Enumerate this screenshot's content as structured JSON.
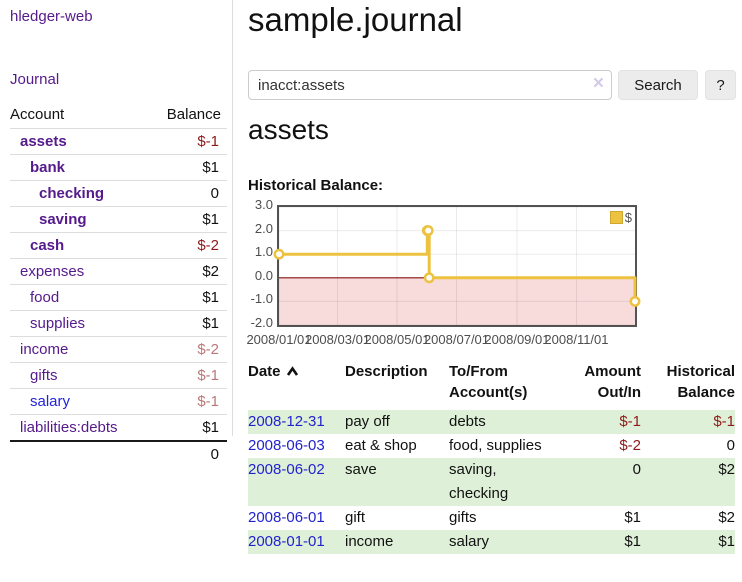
{
  "app": {
    "brand": "hledger-web",
    "nav_journal": "Journal"
  },
  "sidebar": {
    "col_account": "Account",
    "col_balance": "Balance",
    "accounts": [
      {
        "name": "assets",
        "depth": 1,
        "bold": true,
        "negative": true,
        "link": "purple",
        "balance": "$-1"
      },
      {
        "name": "bank",
        "depth": 2,
        "bold": true,
        "negative": false,
        "link": "purple",
        "balance": "$1"
      },
      {
        "name": "checking",
        "depth": 3,
        "bold": true,
        "negative": false,
        "link": "purple",
        "balance": "0"
      },
      {
        "name": "saving",
        "depth": 3,
        "bold": true,
        "negative": false,
        "link": "purple",
        "balance": "$1"
      },
      {
        "name": "cash",
        "depth": 2,
        "bold": true,
        "negative": true,
        "link": "purple",
        "balance": "$-2"
      },
      {
        "name": "expenses",
        "depth": 1,
        "bold": false,
        "negative": false,
        "link": "purple",
        "balance": "$2"
      },
      {
        "name": "food",
        "depth": 2,
        "bold": false,
        "negative": false,
        "link": "purple",
        "balance": "$1"
      },
      {
        "name": "supplies",
        "depth": 2,
        "bold": false,
        "negative": false,
        "link": "purple",
        "balance": "$1"
      },
      {
        "name": "income",
        "depth": 1,
        "bold": false,
        "negative": true,
        "link": "purple",
        "balance": "$-2"
      },
      {
        "name": "gifts",
        "depth": 2,
        "bold": false,
        "negative": true,
        "link": "purple",
        "balance": "$-1"
      },
      {
        "name": "salary",
        "depth": 2,
        "bold": false,
        "negative": true,
        "link": "blue",
        "balance": "$-1"
      },
      {
        "name": "liabilities:debts",
        "depth": 1,
        "bold": false,
        "negative": false,
        "link": "purple",
        "balance": "$1"
      }
    ],
    "total": "0"
  },
  "header": {
    "title": "sample.journal"
  },
  "search": {
    "value": "inacct:assets",
    "clear_icon": "×",
    "button": "Search",
    "help_button": "?"
  },
  "account_page": {
    "heading": "assets",
    "chart_title": "Historical Balance:"
  },
  "chart_data": {
    "type": "line",
    "step": true,
    "title": "Historical Balance:",
    "xlim": [
      "2008-01-01",
      "2008-12-31"
    ],
    "ylim": [
      -2,
      3
    ],
    "ytick_values": [
      3,
      2,
      1,
      0,
      -1,
      -2
    ],
    "ytick_labels": [
      "3.0",
      "2.0",
      "1.0",
      "0.0",
      "-1.0",
      "-2.0"
    ],
    "xticks": [
      {
        "date": "2008-01-01",
        "label": "2008/01/01"
      },
      {
        "date": "2008-03-01",
        "label": "2008/03/01"
      },
      {
        "date": "2008-05-01",
        "label": "2008/05/01"
      },
      {
        "date": "2008-07-01",
        "label": "2008/07/01"
      },
      {
        "date": "2008-09-01",
        "label": "2008/09/01"
      },
      {
        "date": "2008-11-01",
        "label": "2008/11/01"
      }
    ],
    "series": [
      {
        "name": "$",
        "color": "#edc240",
        "points": [
          [
            "2008-01-01",
            1
          ],
          [
            "2008-06-01",
            2
          ],
          [
            "2008-06-02",
            2
          ],
          [
            "2008-06-03",
            0
          ],
          [
            "2008-12-31",
            -1
          ]
        ]
      }
    ],
    "legend": {
      "label": "$",
      "position": "top-right"
    },
    "negative_region_color": "#f8dbdb",
    "zero_line_color": "#871414",
    "grid": true
  },
  "register": {
    "columns": [
      {
        "label": "Date",
        "sorted_asc": true
      },
      {
        "label": "Description"
      },
      {
        "label": "To/From Account(s)"
      },
      {
        "label": "Amount Out/In"
      },
      {
        "label": "Historical Balance"
      }
    ],
    "rows": [
      {
        "date": "2008-12-31",
        "description": "pay off",
        "accounts": "debts",
        "amount": "$-1",
        "amount_negative": true,
        "balance": "$-1",
        "balance_negative": true
      },
      {
        "date": "2008-06-03",
        "description": "eat & shop",
        "accounts": "food, supplies",
        "amount": "$-2",
        "amount_negative": true,
        "balance": "0",
        "balance_negative": false
      },
      {
        "date": "2008-06-02",
        "description": "save",
        "accounts": "saving, checking",
        "amount": "0",
        "amount_negative": false,
        "balance": "$2",
        "balance_negative": false
      },
      {
        "date": "2008-06-01",
        "description": "gift",
        "accounts": "gifts",
        "amount": "$1",
        "amount_negative": false,
        "balance": "$2",
        "balance_negative": false
      },
      {
        "date": "2008-01-01",
        "description": "income",
        "accounts": "salary",
        "amount": "$1",
        "amount_negative": false,
        "balance": "$1",
        "balance_negative": false
      }
    ]
  }
}
